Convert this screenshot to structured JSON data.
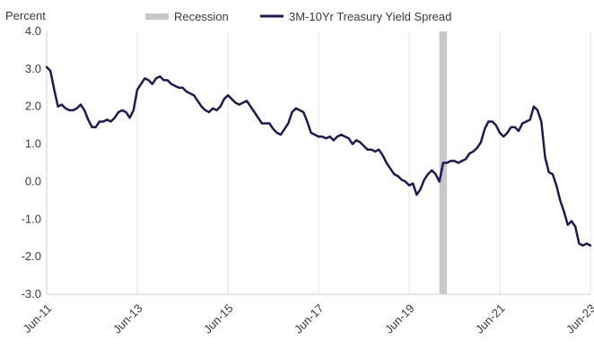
{
  "chart_data": {
    "type": "line",
    "title": "",
    "ylabel": "Percent",
    "xlabel": "",
    "ylim": [
      -3.0,
      4.0
    ],
    "yticks": [
      4.0,
      3.0,
      2.0,
      1.0,
      0.0,
      -1.0,
      -2.0,
      -3.0
    ],
    "ytick_labels": [
      "4.0",
      "3.0",
      "2.0",
      "1.0",
      "0.0",
      "-1.0",
      "-2.0",
      "-3.0"
    ],
    "xlim": [
      "2011-06",
      "2023-06"
    ],
    "xticks": [
      "2011-06",
      "2013-06",
      "2015-06",
      "2017-06",
      "2019-06",
      "2021-06",
      "2023-06"
    ],
    "xtick_labels": [
      "Jun-11",
      "Jun-13",
      "Jun-15",
      "Jun-17",
      "Jun-19",
      "Jun-21",
      "Jun-23"
    ],
    "grid": "vertical",
    "legend": {
      "position": "top",
      "entries": [
        {
          "label": "Recession",
          "kind": "band",
          "color": "#c8c8c8"
        },
        {
          "label": "3M-10Yr Treasury Yield Spread",
          "kind": "line",
          "color": "#1c1a5a"
        }
      ]
    },
    "recession": {
      "start": "2020-02",
      "end": "2020-04"
    },
    "series": [
      {
        "name": "3M-10Yr Treasury Yield Spread",
        "color": "#1c1a5a",
        "x": [
          "2011-06",
          "2011-07",
          "2011-08",
          "2011-09",
          "2011-10",
          "2011-11",
          "2011-12",
          "2012-01",
          "2012-02",
          "2012-03",
          "2012-04",
          "2012-05",
          "2012-06",
          "2012-07",
          "2012-08",
          "2012-09",
          "2012-10",
          "2012-11",
          "2012-12",
          "2013-01",
          "2013-02",
          "2013-03",
          "2013-04",
          "2013-05",
          "2013-06",
          "2013-07",
          "2013-08",
          "2013-09",
          "2013-10",
          "2013-11",
          "2013-12",
          "2014-01",
          "2014-02",
          "2014-03",
          "2014-04",
          "2014-05",
          "2014-06",
          "2014-07",
          "2014-08",
          "2014-09",
          "2014-10",
          "2014-11",
          "2014-12",
          "2015-01",
          "2015-02",
          "2015-03",
          "2015-04",
          "2015-05",
          "2015-06",
          "2015-07",
          "2015-08",
          "2015-09",
          "2015-10",
          "2015-11",
          "2015-12",
          "2016-01",
          "2016-02",
          "2016-03",
          "2016-04",
          "2016-05",
          "2016-06",
          "2016-07",
          "2016-08",
          "2016-09",
          "2016-10",
          "2016-11",
          "2016-12",
          "2017-01",
          "2017-02",
          "2017-03",
          "2017-04",
          "2017-05",
          "2017-06",
          "2017-07",
          "2017-08",
          "2017-09",
          "2017-10",
          "2017-11",
          "2017-12",
          "2018-01",
          "2018-02",
          "2018-03",
          "2018-04",
          "2018-05",
          "2018-06",
          "2018-07",
          "2018-08",
          "2018-09",
          "2018-10",
          "2018-11",
          "2018-12",
          "2019-01",
          "2019-02",
          "2019-03",
          "2019-04",
          "2019-05",
          "2019-06",
          "2019-07",
          "2019-08",
          "2019-09",
          "2019-10",
          "2019-11",
          "2019-12",
          "2020-01",
          "2020-02",
          "2020-03",
          "2020-04",
          "2020-05",
          "2020-06",
          "2020-07",
          "2020-08",
          "2020-09",
          "2020-10",
          "2020-11",
          "2020-12",
          "2021-01",
          "2021-02",
          "2021-03",
          "2021-04",
          "2021-05",
          "2021-06",
          "2021-07",
          "2021-08",
          "2021-09",
          "2021-10",
          "2021-11",
          "2021-12",
          "2022-01",
          "2022-02",
          "2022-03",
          "2022-04",
          "2022-05",
          "2022-06",
          "2022-07",
          "2022-08",
          "2022-09",
          "2022-10",
          "2022-11",
          "2022-12",
          "2023-01",
          "2023-02",
          "2023-03",
          "2023-04",
          "2023-05",
          "2023-06"
        ],
        "values": [
          3.05,
          2.95,
          2.45,
          2.0,
          2.05,
          1.95,
          1.9,
          1.9,
          1.95,
          2.05,
          1.9,
          1.65,
          1.45,
          1.45,
          1.6,
          1.6,
          1.65,
          1.6,
          1.7,
          1.85,
          1.9,
          1.85,
          1.7,
          1.9,
          2.45,
          2.6,
          2.75,
          2.7,
          2.6,
          2.75,
          2.8,
          2.7,
          2.7,
          2.6,
          2.55,
          2.5,
          2.5,
          2.4,
          2.35,
          2.3,
          2.15,
          2.0,
          1.9,
          1.85,
          1.95,
          1.9,
          2.0,
          2.2,
          2.3,
          2.2,
          2.1,
          2.05,
          2.1,
          2.15,
          2.0,
          1.85,
          1.7,
          1.55,
          1.55,
          1.55,
          1.4,
          1.3,
          1.25,
          1.4,
          1.55,
          1.85,
          1.95,
          1.9,
          1.85,
          1.6,
          1.3,
          1.25,
          1.2,
          1.2,
          1.15,
          1.2,
          1.1,
          1.2,
          1.25,
          1.2,
          1.15,
          1.0,
          1.1,
          1.05,
          0.95,
          0.85,
          0.85,
          0.8,
          0.85,
          0.7,
          0.5,
          0.35,
          0.2,
          0.15,
          0.05,
          0.0,
          -0.1,
          -0.05,
          -0.35,
          -0.2,
          0.05,
          0.2,
          0.3,
          0.2,
          0.0,
          0.5,
          0.5,
          0.55,
          0.55,
          0.5,
          0.55,
          0.6,
          0.75,
          0.8,
          0.9,
          1.05,
          1.4,
          1.6,
          1.6,
          1.5,
          1.3,
          1.2,
          1.3,
          1.45,
          1.45,
          1.35,
          1.55,
          1.6,
          1.65,
          2.0,
          1.9,
          1.6,
          0.65,
          0.25,
          0.2,
          -0.1,
          -0.5,
          -0.8,
          -1.15,
          -1.05,
          -1.2,
          -1.65,
          -1.7,
          -1.65,
          -1.7
        ]
      }
    ]
  }
}
